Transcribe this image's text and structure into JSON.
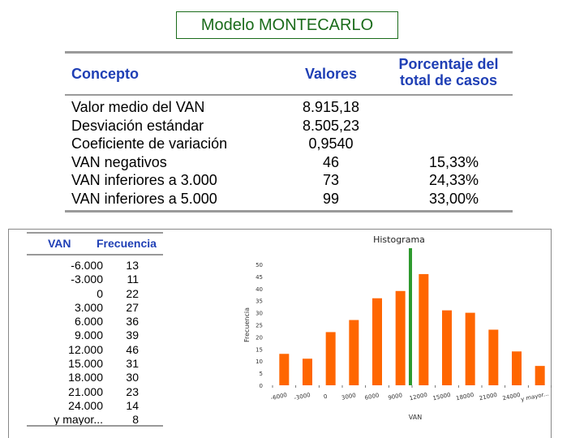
{
  "title": "Modelo MONTECARLO",
  "summary": {
    "headers": {
      "concept": "Concepto",
      "values": "Valores",
      "pct_line1": "Porcentaje del",
      "pct_line2": "total de casos"
    },
    "rows": [
      {
        "concept": "Valor medio del VAN",
        "value": "8.915,18",
        "pct": ""
      },
      {
        "concept": "Desviación estándar",
        "value": "8.505,23",
        "pct": ""
      },
      {
        "concept": "Coeficiente de variación",
        "value": "0,9540",
        "pct": ""
      },
      {
        "concept": "VAN negativos",
        "value": "46",
        "pct": "15,33%"
      },
      {
        "concept": "VAN inferiores a 3.000",
        "value": "73",
        "pct": "24,33%"
      },
      {
        "concept": "VAN inferiores a 5.000",
        "value": "99",
        "pct": "33,00%"
      }
    ]
  },
  "freq_table": {
    "headers": {
      "van": "VAN",
      "freq": "Frecuencia"
    },
    "rows": [
      {
        "van": "-6.000",
        "freq": "13"
      },
      {
        "van": "-3.000",
        "freq": "11"
      },
      {
        "van": "0",
        "freq": "22"
      },
      {
        "van": "3.000",
        "freq": "27"
      },
      {
        "van": "6.000",
        "freq": "36"
      },
      {
        "van": "9.000",
        "freq": "39"
      },
      {
        "van": "12.000",
        "freq": "46"
      },
      {
        "van": "15.000",
        "freq": "31"
      },
      {
        "van": "18.000",
        "freq": "30"
      },
      {
        "van": "21.000",
        "freq": "23"
      },
      {
        "van": "24.000",
        "freq": "14"
      },
      {
        "van": "y mayor...",
        "freq": "8"
      }
    ]
  },
  "chart_data": {
    "type": "bar",
    "title": "Histograma",
    "xlabel": "VAN",
    "ylabel": "Frecuencia",
    "categories": [
      "-6000",
      "-3000",
      "0",
      "3000",
      "6000",
      "9000",
      "12000",
      "15000",
      "18000",
      "21000",
      "24000",
      "y mayor..."
    ],
    "values": [
      13,
      11,
      22,
      27,
      36,
      39,
      46,
      31,
      30,
      23,
      14,
      8
    ],
    "ylim": [
      0,
      50
    ],
    "yticks": [
      0,
      5,
      10,
      15,
      20,
      25,
      30,
      35,
      40,
      45,
      50
    ],
    "bar_color": "#ff6600",
    "marker_line": {
      "position_between_categories": [
        5,
        6
      ],
      "color": "#2e9a2e"
    },
    "grid": false,
    "legend": "none"
  }
}
